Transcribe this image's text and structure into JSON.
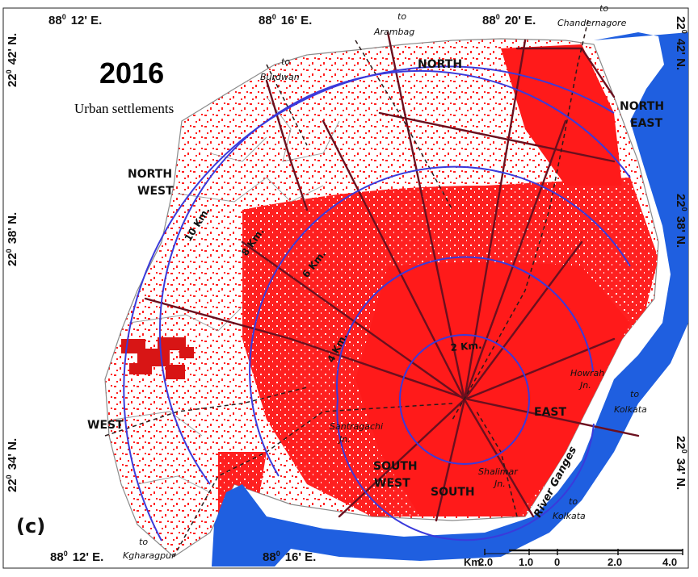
{
  "map": {
    "year": "2016",
    "subtitle": "Urban settlements",
    "panel_label": "(c)",
    "coordinates": {
      "top": [
        {
          "deg": "88",
          "min": "12' E."
        },
        {
          "deg": "88",
          "min": "16' E."
        },
        {
          "deg": "88",
          "min": "20' E."
        }
      ],
      "bottom": [
        {
          "deg": "88",
          "min": "12' E."
        },
        {
          "deg": "88",
          "min": "16' E."
        }
      ],
      "left": [
        {
          "deg": "22",
          "min": "42' N."
        },
        {
          "deg": "22",
          "min": "38' N."
        },
        {
          "deg": "22",
          "min": "34' N."
        }
      ],
      "right": [
        {
          "deg": "22",
          "min": "42' N."
        },
        {
          "deg": "22",
          "min": "38' N."
        },
        {
          "deg": "22",
          "min": "34' N."
        }
      ]
    },
    "zones": {
      "north": "NORTH",
      "north_east_1": "NORTH",
      "north_east_2": "EAST",
      "north_west_1": "NORTH",
      "north_west_2": "WEST",
      "west": "WEST",
      "south_west_1": "SOUTH",
      "south_west_2": "WEST",
      "south": "SOUTH",
      "east": "EAST"
    },
    "routes": {
      "arambag_1": "to",
      "arambag_2": "Arambag",
      "chandernagore_1": "to",
      "chandernagore_2": "Chandernagore",
      "burdwan_1": "to",
      "burdwan_2": "Burdwan",
      "kolkata_east_1": "to",
      "kolkata_east_2": "Kolkata",
      "kolkata_south_1": "to",
      "kolkata_south_2": "Kolkata",
      "kgharagpur_1": "to",
      "kgharagpur_2": "Kgharagpur"
    },
    "rings": [
      "2 Km.",
      "4 Km.",
      "6 Km.",
      "8 Km.",
      "10 Km."
    ],
    "junctions": {
      "howrah_1": "Howrah",
      "howrah_2": "Jn.",
      "santragachi_1": "Santragachi",
      "santragachi_2": "Jn.",
      "shalimar_1": "Shalimar",
      "shalimar_2": "Jn."
    },
    "river_label": "River Ganges",
    "scale": {
      "unit": "Km.",
      "ticks": [
        "2.0",
        "1.0",
        "0",
        "2.0",
        "4.0"
      ]
    },
    "colors": {
      "urban": "#ff1a1a",
      "river": "#1f5fe0",
      "ring": "#3a3adb",
      "road": "#6b0f1e",
      "boundary": "#8a8a8a"
    }
  }
}
